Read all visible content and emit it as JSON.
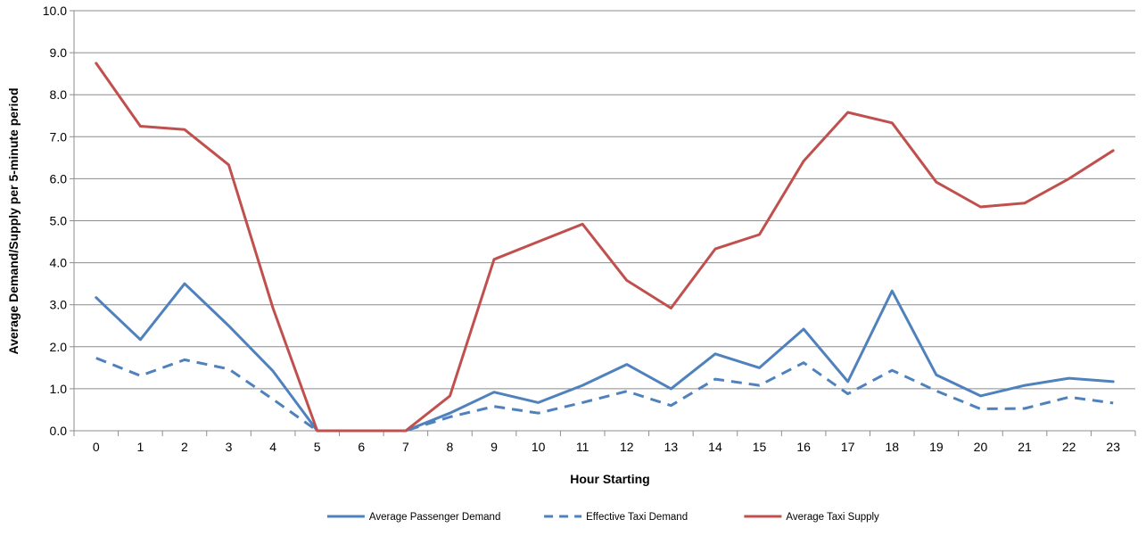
{
  "chart_data": {
    "type": "line",
    "title": "",
    "xlabel": "Hour Starting",
    "ylabel": "Average Demand/Supply per 5-minute period",
    "categories": [
      "0",
      "1",
      "2",
      "3",
      "4",
      "5",
      "6",
      "7",
      "8",
      "9",
      "10",
      "11",
      "12",
      "13",
      "14",
      "15",
      "16",
      "17",
      "18",
      "19",
      "20",
      "21",
      "22",
      "23"
    ],
    "ylim": [
      0,
      10
    ],
    "y_ticks": [
      "0.0",
      "1.0",
      "2.0",
      "3.0",
      "4.0",
      "5.0",
      "6.0",
      "7.0",
      "8.0",
      "9.0",
      "10.0"
    ],
    "grid": "horizontal",
    "legend_position": "bottom",
    "series": [
      {
        "name": "Average Passenger Demand",
        "color": "#4f81bd",
        "dash": "solid",
        "values": [
          3.17,
          2.17,
          3.5,
          2.5,
          1.42,
          0.0,
          0.0,
          0.0,
          0.42,
          0.92,
          0.67,
          1.08,
          1.58,
          1.0,
          1.83,
          1.5,
          2.42,
          1.17,
          3.33,
          1.33,
          0.83,
          1.08,
          1.25,
          1.17
        ]
      },
      {
        "name": "Effective Taxi Demand",
        "color": "#4f81bd",
        "dash": "dashed",
        "values": [
          1.73,
          1.31,
          1.69,
          1.47,
          0.75,
          0.0,
          0.0,
          0.0,
          0.33,
          0.58,
          0.42,
          0.67,
          0.94,
          0.6,
          1.23,
          1.08,
          1.62,
          0.88,
          1.44,
          0.95,
          0.52,
          0.53,
          0.8,
          0.66
        ]
      },
      {
        "name": "Average Taxi Supply",
        "color": "#c0504d",
        "dash": "solid",
        "values": [
          8.75,
          7.25,
          7.17,
          6.33,
          2.92,
          0.0,
          0.0,
          0.0,
          0.83,
          4.08,
          4.5,
          4.92,
          3.58,
          2.92,
          4.33,
          4.67,
          6.42,
          7.58,
          7.33,
          5.92,
          5.33,
          5.42,
          6.0,
          6.67
        ]
      }
    ]
  }
}
